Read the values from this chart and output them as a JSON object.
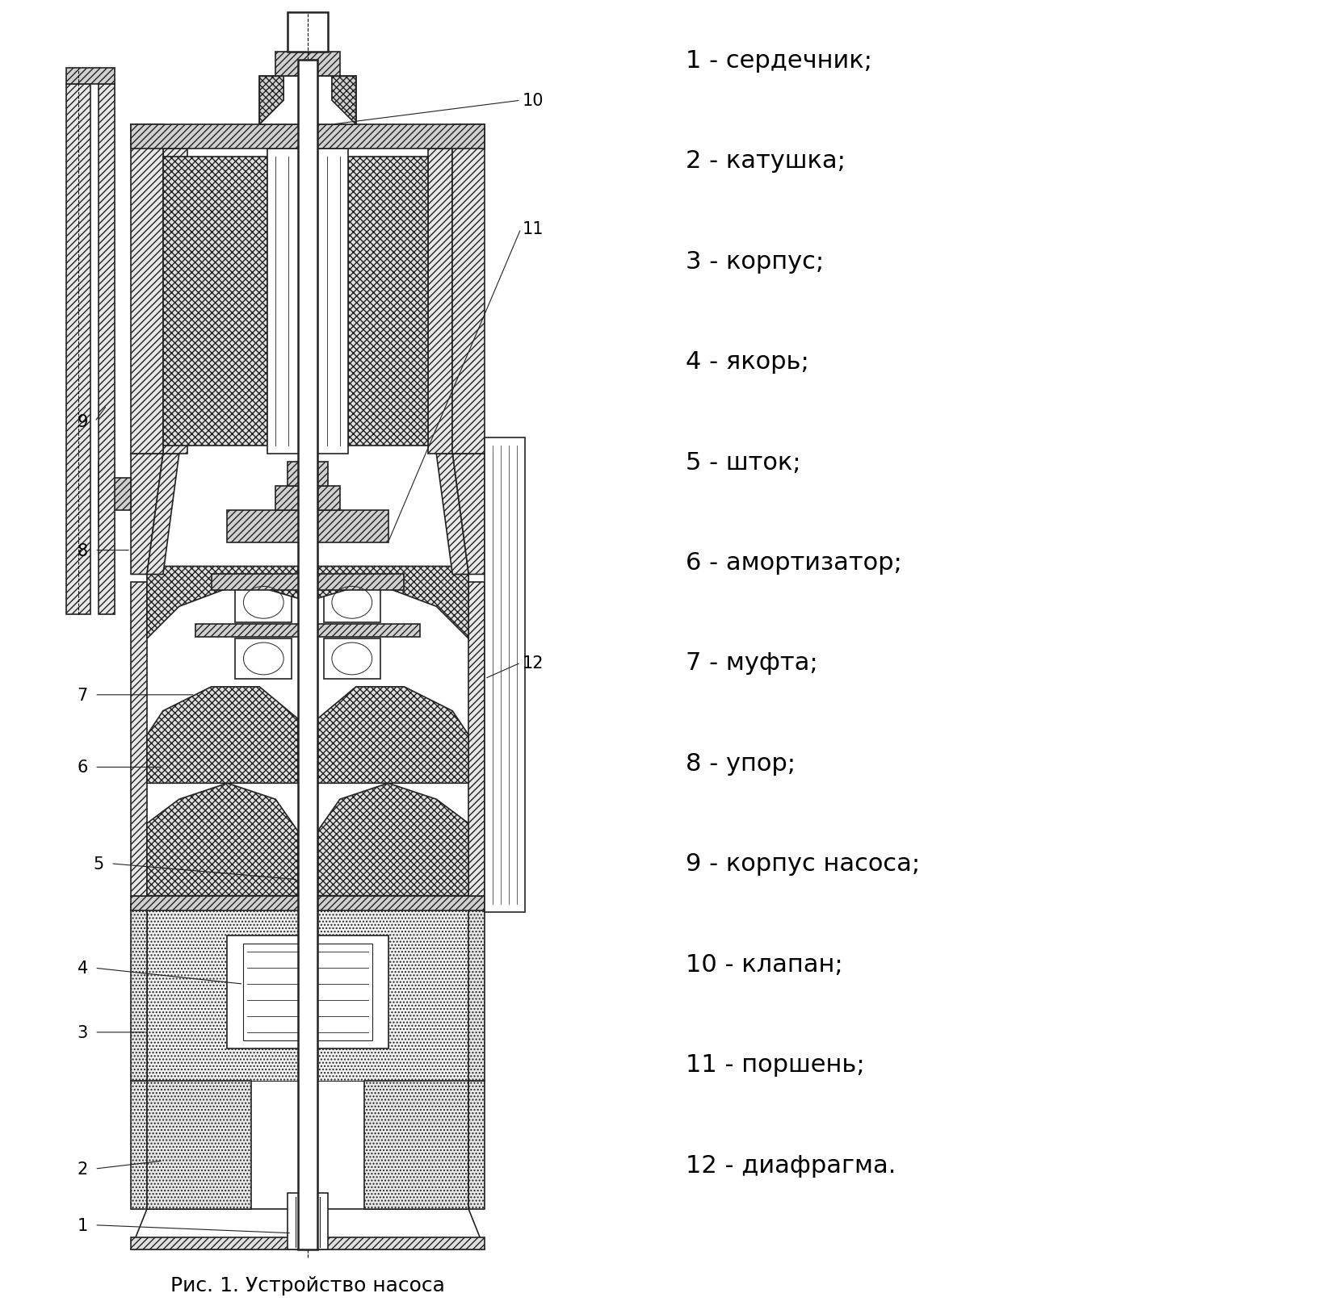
{
  "title": "Рис. 1. Устройство насоса",
  "legend_items": [
    "1 - сердечник;",
    "2 - катушка;",
    "3 - корпус;",
    "4 - якорь;",
    "5 - шток;",
    "6 - амортизатор;",
    "7 - муфта;",
    "8 - упор;",
    "9 - корпус насоса;",
    "10 - клапан;",
    "11 - поршень;",
    "12 - диафрагма."
  ],
  "bg_color": "#ffffff",
  "line_color": "#222222",
  "label_color": "#000000",
  "legend_fontsize": 22,
  "title_fontsize": 18,
  "callout_fontsize": 15
}
